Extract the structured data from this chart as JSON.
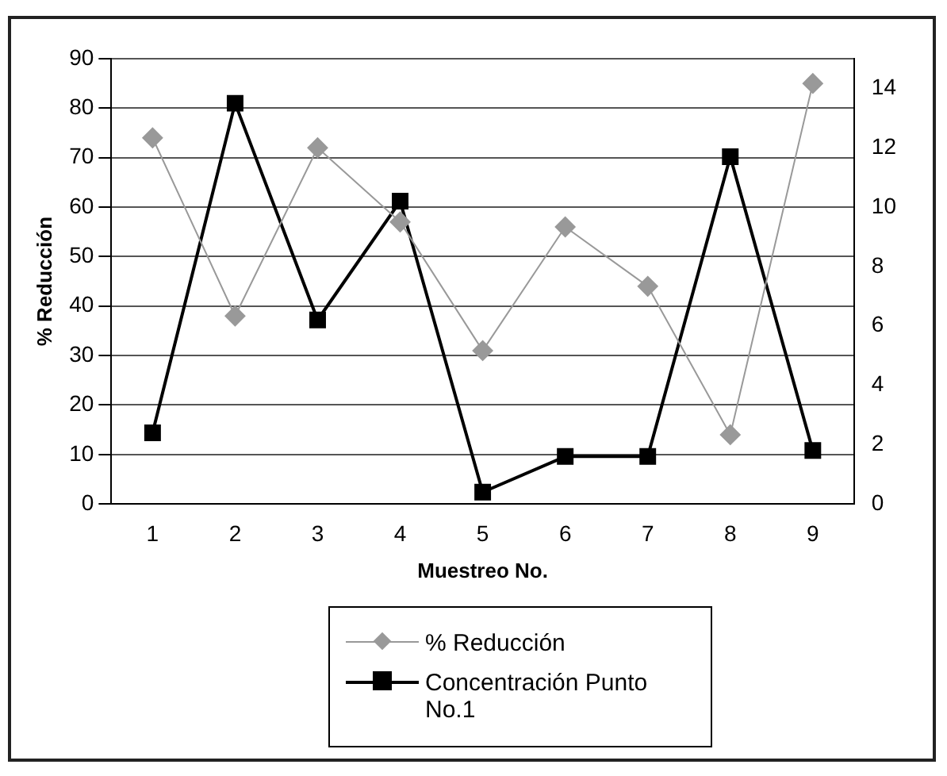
{
  "chart_data": {
    "type": "line",
    "xlabel": "Muestreo No.",
    "ylabel": "% Reducción",
    "categories": [
      "1",
      "2",
      "3",
      "4",
      "5",
      "6",
      "7",
      "8",
      "9"
    ],
    "series": [
      {
        "name": "% Reducción",
        "color": "#999999",
        "marker": "diamond",
        "values": [
          74,
          38,
          72,
          57,
          31,
          56,
          44,
          14,
          85
        ]
      },
      {
        "name": "Concentración Punto No.1",
        "color": "#000000",
        "marker": "square",
        "axis": "y2",
        "values": [
          2.4,
          13.5,
          6.2,
          10.2,
          0.4,
          1.6,
          1.6,
          11.7,
          1.8
        ]
      }
    ],
    "ylim": [
      0,
      90
    ],
    "yticks": [
      0,
      10,
      20,
      30,
      40,
      50,
      60,
      70,
      80,
      90
    ],
    "y2lim": [
      0,
      15
    ],
    "y2ticks": [
      0,
      2,
      4,
      6,
      8,
      10,
      12,
      14
    ],
    "grid": "y",
    "legend": "bottom"
  }
}
